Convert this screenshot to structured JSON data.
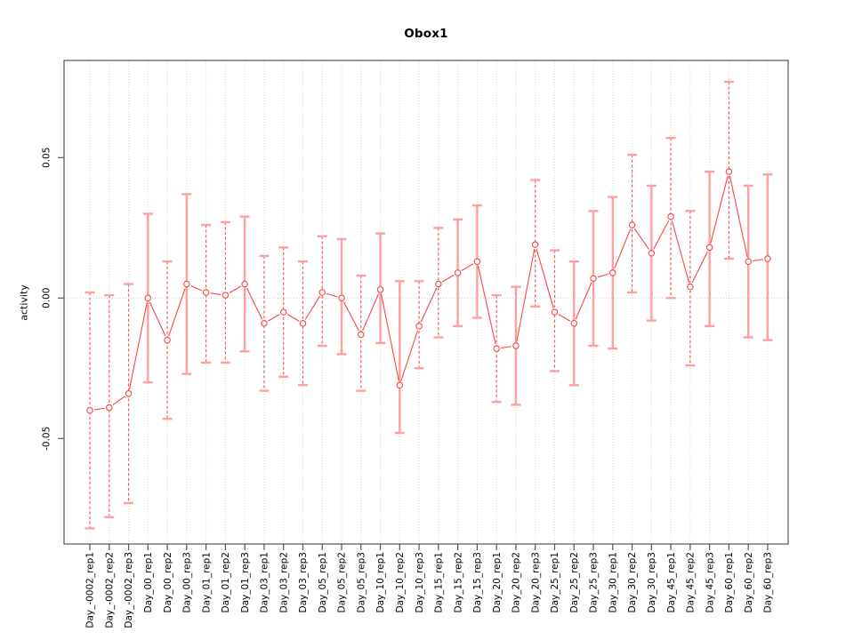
{
  "chart_data": {
    "type": "line",
    "title": "Obox1",
    "ylabel": "activity",
    "xlabel": "",
    "grid": "vertical dotted gridline at every category; dotted horizontal line at zero; full box border",
    "legend": "none",
    "ylim": [
      -0.088,
      0.085
    ],
    "yticks": [
      {
        "value": 0.05,
        "label": "0.05"
      },
      {
        "value": 0.0,
        "label": "0.00"
      },
      {
        "value": -0.05,
        "label": "-0.05"
      }
    ],
    "categories": [
      "Day_-0002_rep1",
      "Day_-0002_rep2",
      "Day_-0002_rep3",
      "Day_00_rep1",
      "Day_00_rep2",
      "Day_00_rep3",
      "Day_01_rep1",
      "Day_01_rep2",
      "Day_01_rep3",
      "Day_03_rep1",
      "Day_03_rep2",
      "Day_03_rep3",
      "Day_05_rep1",
      "Day_05_rep2",
      "Day_05_rep3",
      "Day_10_rep1",
      "Day_10_rep2",
      "Day_10_rep3",
      "Day_15_rep1",
      "Day_15_rep2",
      "Day_15_rep3",
      "Day_20_rep1",
      "Day_20_rep2",
      "Day_20_rep3",
      "Day_25_rep1",
      "Day_25_rep2",
      "Day_25_rep3",
      "Day_30_rep1",
      "Day_30_rep2",
      "Day_30_rep3",
      "Day_45_rep1",
      "Day_45_rep2",
      "Day_45_rep3",
      "Day_60_rep1",
      "Day_60_rep2",
      "Day_60_rep3"
    ],
    "series": [
      {
        "name": "activity",
        "centers": [
          -0.04,
          -0.039,
          -0.034,
          0.0,
          -0.015,
          0.005,
          0.002,
          0.001,
          0.005,
          -0.009,
          -0.005,
          -0.009,
          0.002,
          0.0,
          -0.013,
          0.003,
          -0.031,
          -0.01,
          0.005,
          0.009,
          0.013,
          -0.018,
          -0.017,
          0.019,
          -0.005,
          -0.009,
          0.007,
          0.009,
          0.026,
          0.016,
          0.029,
          0.004,
          0.018,
          0.045,
          0.013,
          0.014
        ],
        "upper": [
          0.002,
          0.001,
          0.005,
          0.03,
          0.013,
          0.037,
          0.026,
          0.027,
          0.029,
          0.015,
          0.018,
          0.013,
          0.022,
          0.021,
          0.008,
          0.023,
          0.006,
          0.006,
          0.025,
          0.028,
          0.033,
          0.001,
          0.004,
          0.042,
          0.017,
          0.013,
          0.031,
          0.036,
          0.051,
          0.04,
          0.057,
          0.031,
          0.045,
          0.077,
          0.04,
          0.044
        ],
        "lower": [
          -0.082,
          -0.078,
          -0.073,
          -0.03,
          -0.043,
          -0.027,
          -0.023,
          -0.023,
          -0.019,
          -0.033,
          -0.028,
          -0.031,
          -0.017,
          -0.02,
          -0.033,
          -0.016,
          -0.048,
          -0.025,
          -0.014,
          -0.01,
          -0.007,
          -0.037,
          -0.038,
          -0.003,
          -0.026,
          -0.031,
          -0.017,
          -0.018,
          0.002,
          -0.008,
          0.0,
          -0.024,
          -0.01,
          0.014,
          -0.014,
          -0.015
        ],
        "bar_styles": [
          "dashed",
          "dashed",
          "dashed",
          "solid",
          "dashed",
          "solid",
          "dashed",
          "dashed",
          "solid",
          "dashed",
          "dashed",
          "dashed",
          "dashed",
          "solid",
          "dashed",
          "solid",
          "solid",
          "dashed",
          "dashed",
          "solid",
          "solid",
          "dashed",
          "solid",
          "dashed",
          "dashed",
          "solid",
          "solid",
          "solid",
          "dashed",
          "solid",
          "dashed",
          "dashed",
          "solid",
          "dashed",
          "solid",
          "solid"
        ]
      }
    ],
    "colors": {
      "point_red": "#f94545",
      "line_red": "#f94545",
      "bar_salmon": "#ff9f9f",
      "bar_dashed_red": "#fb5a5a",
      "grid_gray": "#d9d9d9",
      "zero_line_gray": "#cccccc",
      "axis_gray": "#555555",
      "text_black": "#000000",
      "background": "#ffffff"
    }
  }
}
